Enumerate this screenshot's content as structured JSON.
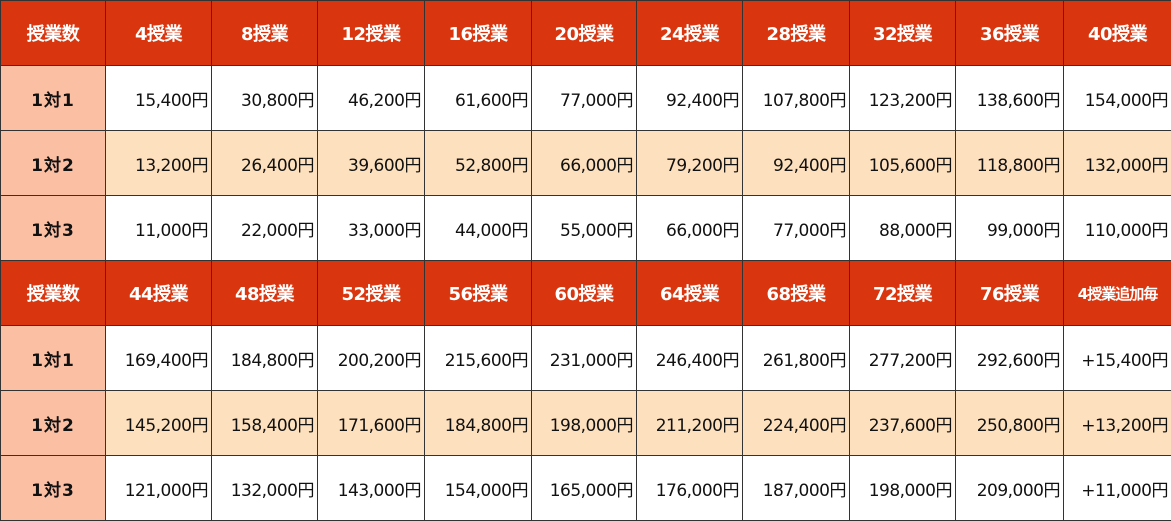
{
  "colors": {
    "header_bg": "#d9360f",
    "header_text": "#ffffff",
    "row_label_bg": "#fbbfa4",
    "tinted_row_bg": "#fde0bd",
    "plain_row_bg": "#ffffff",
    "border": "#333333"
  },
  "blocks": [
    {
      "header": [
        "授業数",
        "4授業",
        "8授業",
        "12授業",
        "16授業",
        "20授業",
        "24授業",
        "28授業",
        "32授業",
        "36授業",
        "40授業"
      ],
      "rows": [
        {
          "label": "1対1",
          "values": [
            "15,400円",
            "30,800円",
            "46,200円",
            "61,600円",
            "77,000円",
            "92,400円",
            "107,800円",
            "123,200円",
            "138,600円",
            "154,000円"
          ]
        },
        {
          "label": "1対2",
          "values": [
            "13,200円",
            "26,400円",
            "39,600円",
            "52,800円",
            "66,000円",
            "79,200円",
            "92,400円",
            "105,600円",
            "118,800円",
            "132,000円"
          ]
        },
        {
          "label": "1対3",
          "values": [
            "11,000円",
            "22,000円",
            "33,000円",
            "44,000円",
            "55,000円",
            "66,000円",
            "77,000円",
            "88,000円",
            "99,000円",
            "110,000円"
          ]
        }
      ]
    },
    {
      "header": [
        "授業数",
        "44授業",
        "48授業",
        "52授業",
        "56授業",
        "60授業",
        "64授業",
        "68授業",
        "72授業",
        "76授業",
        "4授業追加毎"
      ],
      "rows": [
        {
          "label": "1対1",
          "values": [
            "169,400円",
            "184,800円",
            "200,200円",
            "215,600円",
            "231,000円",
            "246,400円",
            "261,800円",
            "277,200円",
            "292,600円",
            "+15,400円"
          ]
        },
        {
          "label": "1対2",
          "values": [
            "145,200円",
            "158,400円",
            "171,600円",
            "184,800円",
            "198,000円",
            "211,200円",
            "224,400円",
            "237,600円",
            "250,800円",
            "+13,200円"
          ]
        },
        {
          "label": "1対3",
          "values": [
            "121,000円",
            "132,000円",
            "143,000円",
            "154,000円",
            "165,000円",
            "176,000円",
            "187,000円",
            "198,000円",
            "209,000円",
            "+11,000円"
          ]
        }
      ]
    }
  ]
}
